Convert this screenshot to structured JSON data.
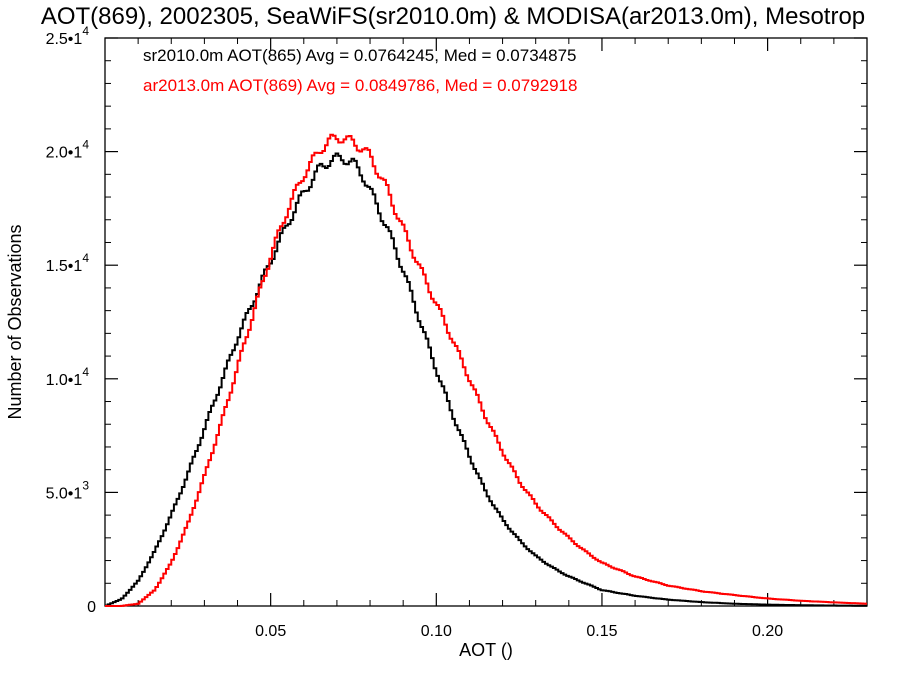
{
  "chart_data": {
    "type": "line",
    "title": "AOT(869), 2002305, SeaWiFS(sr2010.0m) & MODISA(ar2013.0m), Mesotrop",
    "xlabel": "AOT ()",
    "ylabel": "Number of Observations",
    "xlim": [
      0.0,
      0.23
    ],
    "ylim": [
      0,
      25000
    ],
    "x_ticks": [
      {
        "value": 0.05,
        "label": "0.05"
      },
      {
        "value": 0.1,
        "label": "0.10"
      },
      {
        "value": 0.15,
        "label": "0.15"
      },
      {
        "value": 0.2,
        "label": "0.20"
      }
    ],
    "y_ticks": [
      {
        "value": 0,
        "mantissa": "0",
        "exp": ""
      },
      {
        "value": 5000,
        "mantissa": "5.0•1",
        "exp": "3"
      },
      {
        "value": 10000,
        "mantissa": "1.0•1",
        "exp": "4"
      },
      {
        "value": 15000,
        "mantissa": "1.5•1",
        "exp": "4"
      },
      {
        "value": 20000,
        "mantissa": "2.0•1",
        "exp": "4"
      },
      {
        "value": 25000,
        "mantissa": "2.5•1",
        "exp": "4"
      }
    ],
    "grid": false,
    "legend": "top-left",
    "series": [
      {
        "name": "sr2010.0m AOT(865) Avg = 0.0764245, Med = 0.0734875",
        "color": "#000000",
        "style": "histogram-step",
        "x": [
          0.0,
          0.005,
          0.01,
          0.015,
          0.02,
          0.025,
          0.03,
          0.035,
          0.04,
          0.045,
          0.05,
          0.055,
          0.06,
          0.065,
          0.068,
          0.07,
          0.072,
          0.075,
          0.078,
          0.08,
          0.085,
          0.09,
          0.095,
          0.1,
          0.105,
          0.11,
          0.115,
          0.12,
          0.125,
          0.13,
          0.135,
          0.14,
          0.145,
          0.15,
          0.16,
          0.17,
          0.18,
          0.19,
          0.2,
          0.21,
          0.22,
          0.23
        ],
        "y": [
          0,
          300,
          1100,
          2400,
          4000,
          5800,
          7800,
          9800,
          11800,
          13500,
          15200,
          16800,
          18200,
          19300,
          19600,
          19700,
          19700,
          19500,
          18900,
          18300,
          16700,
          14800,
          12600,
          10400,
          8400,
          6600,
          5000,
          3800,
          2900,
          2200,
          1700,
          1300,
          1000,
          700,
          450,
          280,
          170,
          100,
          60,
          35,
          20,
          10
        ]
      },
      {
        "name": "ar2013.0m AOT(869) Avg = 0.0849786, Med = 0.0792918",
        "color": "#ff0000",
        "style": "histogram-step",
        "x": [
          0.0,
          0.005,
          0.01,
          0.015,
          0.02,
          0.025,
          0.03,
          0.035,
          0.04,
          0.045,
          0.05,
          0.055,
          0.06,
          0.065,
          0.068,
          0.07,
          0.072,
          0.075,
          0.078,
          0.08,
          0.085,
          0.09,
          0.095,
          0.1,
          0.105,
          0.11,
          0.115,
          0.12,
          0.125,
          0.13,
          0.135,
          0.14,
          0.145,
          0.15,
          0.16,
          0.17,
          0.18,
          0.19,
          0.2,
          0.21,
          0.22,
          0.23
        ],
        "y": [
          0,
          0,
          100,
          700,
          1900,
          3600,
          5700,
          8000,
          10500,
          13000,
          15400,
          17400,
          19000,
          20100,
          20500,
          20600,
          20600,
          20400,
          20100,
          19800,
          18400,
          16600,
          14900,
          13300,
          11700,
          10000,
          8300,
          6800,
          5500,
          4500,
          3700,
          3000,
          2400,
          1900,
          1300,
          900,
          650,
          480,
          330,
          230,
          160,
          100
        ]
      }
    ]
  }
}
